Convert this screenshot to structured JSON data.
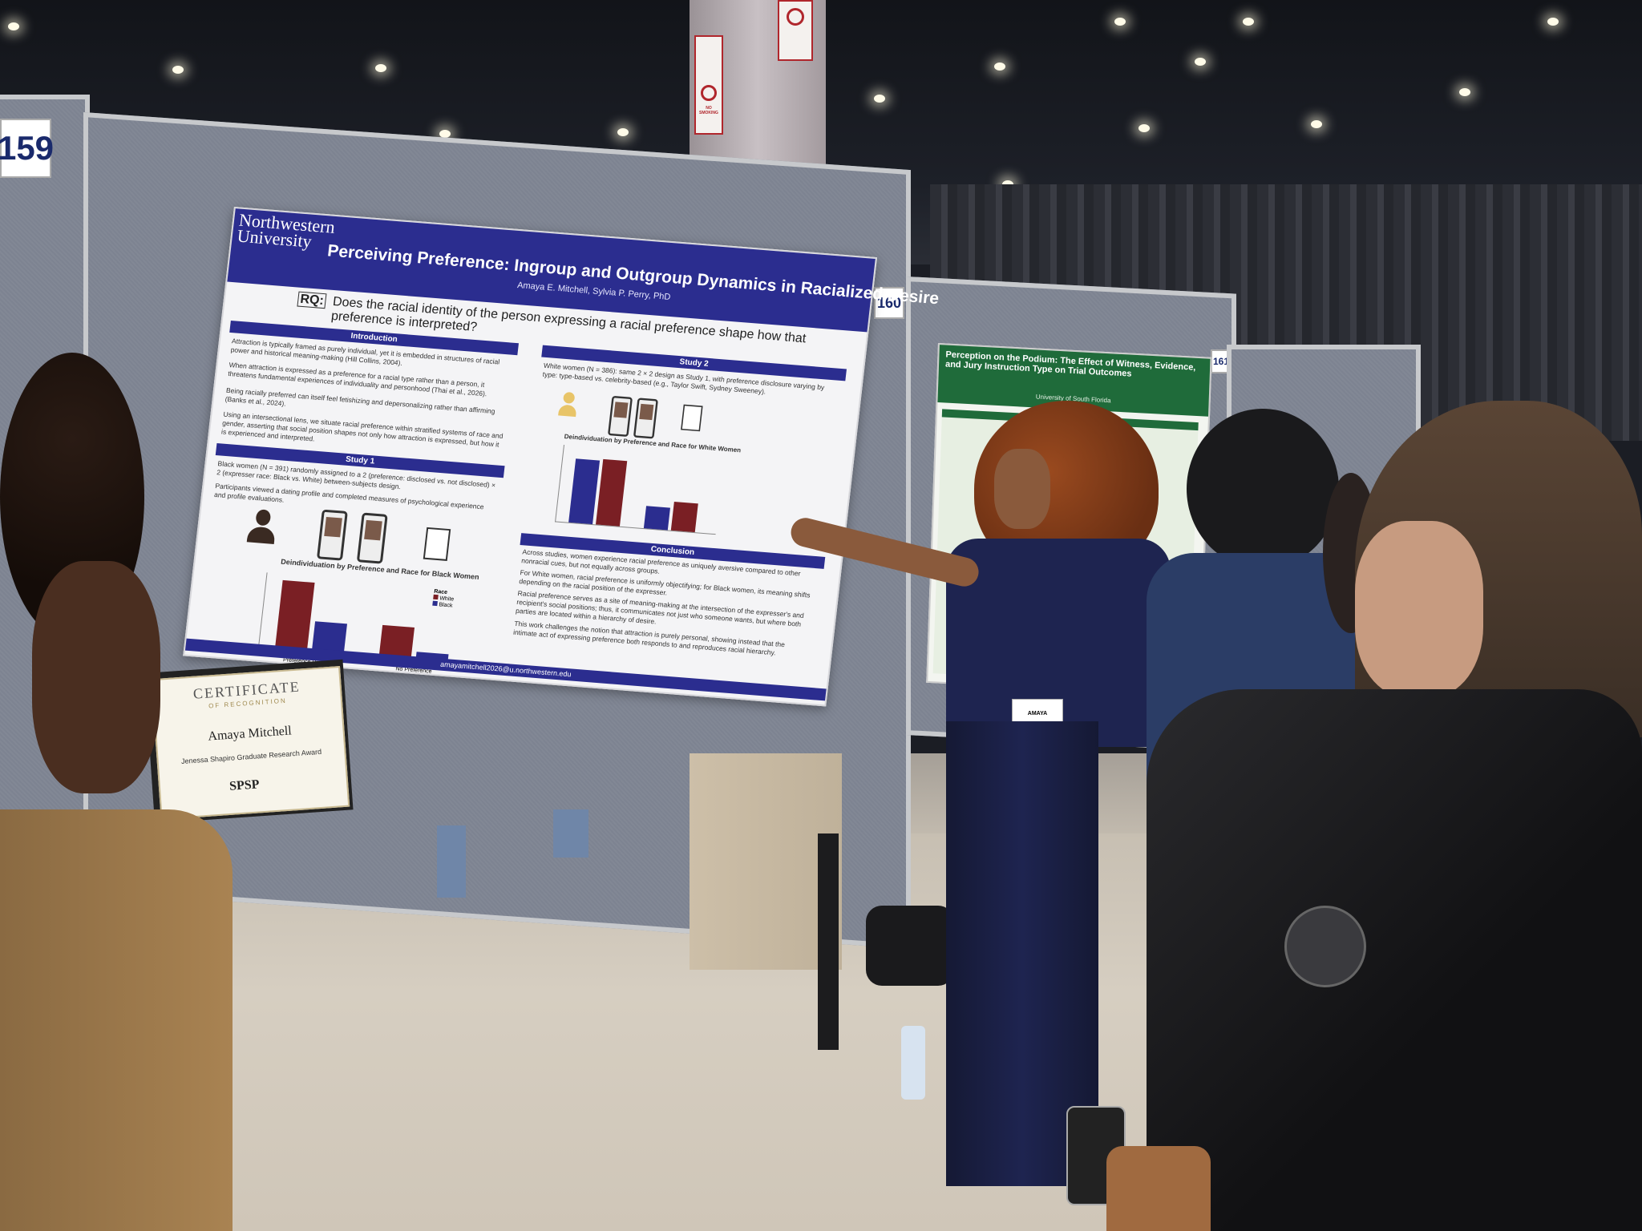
{
  "poster": {
    "university": "Northwestern University",
    "title": "Perceiving Preference: Ingroup and Outgroup Dynamics in Racialized Desire",
    "authors": "Amaya E. Mitchell, Sylvia P. Perry, PhD",
    "rq_prefix": "RQ:",
    "research_question": "Does the racial identity of the person expressing a racial preference shape how that preference is interpreted?",
    "sections": {
      "introduction": "Introduction",
      "study1": "Study 1",
      "study2": "Study 2",
      "conclusion": "Conclusion"
    },
    "intro_bullets": [
      "Attraction is typically framed as purely individual, yet it is embedded in structures of racial power and historical meaning-making (Hill Collins, 2004).",
      "When attraction is expressed as a preference for a racial type rather than a person, it threatens fundamental experiences of individuality and personhood (Thai et al., 2026).",
      "Being racially preferred can itself feel fetishizing and depersonalizing rather than affirming (Banks et al., 2024).",
      "Using an intersectional lens, we situate racial preference within stratified systems of race and gender, asserting that social position shapes not only how attraction is expressed, but how it is experienced and interpreted."
    ],
    "study1_bullets": [
      "Black women (N = 391) randomly assigned to a 2 (preference: disclosed vs. not disclosed) × 2 (expresser race: Black vs. White) between-subjects design.",
      "Participants viewed a dating profile and completed measures of psychological experience and profile evaluations."
    ],
    "study2_bullets": [
      "White women (N = 386): same 2 × 2 design as Study 1, with preference disclosure varying by type: type-based vs. celebrity-based (e.g., Taylor Swift, Sydney Sweeney)."
    ],
    "chart1_title": "Deindividuation by Preference and Race for Black Women",
    "chart2_title": "Deindividuation by Preference and Race for White Women",
    "chart_legend_title": "Race",
    "chart_legend": [
      "White",
      "Black"
    ],
    "chart_categories": [
      "Preference Disclosed",
      "No Preference"
    ],
    "conclusion_bullets": [
      "Across studies, women experience racial preference as uniquely aversive compared to other nonracial cues, but not equally across groups.",
      "For White women, racial preference is uniformly objectifying; for Black women, its meaning shifts depending on the racial position of the expresser.",
      "Racial preference serves as a site of meaning-making at the intersection of the expresser's and recipient's social positions; thus, it communicates not just who someone wants, but where both parties are located within a hierarchy of desire.",
      "This work challenges the notion that attraction is purely personal, showing instead that the intimate act of expressing preference both responds to and reproduces racial hierarchy."
    ],
    "email": "amayamitchell2026@u.northwestern.edu"
  },
  "certificate": {
    "heading": "CERTIFICATE",
    "subheading": "OF RECOGNITION",
    "recipient": "Amaya Mitchell",
    "award": "Jenessa Shapiro Graduate Research Award",
    "org_mark": "SPSP"
  },
  "board_numbers": [
    "159",
    "160",
    "161"
  ],
  "poster2": {
    "title": "Perception on the Podium: The Effect of Witness, Evidence, and Jury Instruction Type on Trial Outcomes",
    "affiliation": "University of South Florida"
  },
  "signs": [
    "NO SMOKING"
  ],
  "badge_name": "AMAYA"
}
